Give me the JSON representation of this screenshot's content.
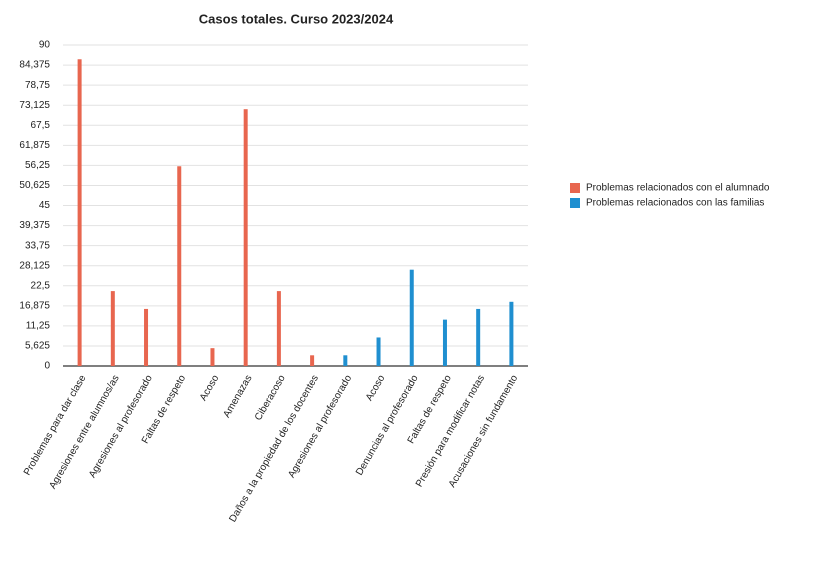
{
  "chart_data": {
    "type": "bar",
    "title": "Casos totales. Curso 2023/2024",
    "categories": [
      "Problemas para dar clase",
      "Agresiones entre alumnos/as",
      "Agresiones al profesorado",
      "Faltas de respeto",
      "Acoso",
      "Amenazas",
      "Ciberacoso",
      "Daños a la propiedad de los docentes",
      "Agresiones al profesorado",
      "Acoso",
      "Denuncias al profesorado",
      "Faltas de respeto",
      "Presión para modificar notas",
      "Acusaciones sin fundamento"
    ],
    "series": [
      {
        "name": "Problemas relacionados con el alumnado",
        "color": "#e8664f",
        "values": [
          86,
          21,
          16,
          56,
          5,
          72,
          21,
          3,
          null,
          null,
          null,
          null,
          null,
          null
        ]
      },
      {
        "name": "Problemas relacionados con las familias",
        "color": "#1f8fd0",
        "values": [
          null,
          null,
          null,
          null,
          null,
          null,
          null,
          null,
          3,
          8,
          27,
          13,
          16,
          18
        ]
      }
    ],
    "ylim": [
      0,
      90
    ],
    "yticks": [
      0,
      {
        "value": 5.625,
        "label": "5,625"
      },
      {
        "value": 11.25,
        "label": "11,25"
      },
      {
        "value": 16.875,
        "label": "16,875"
      },
      {
        "value": 22.5,
        "label": "22,5"
      },
      {
        "value": 28.125,
        "label": "28,125"
      },
      {
        "value": 33.75,
        "label": "33,75"
      },
      {
        "value": 39.375,
        "label": "39,375"
      },
      45,
      {
        "value": 50.625,
        "label": "50,625"
      },
      {
        "value": 56.25,
        "label": "56,25"
      },
      {
        "value": 61.875,
        "label": "61,875"
      },
      {
        "value": 67.5,
        "label": "67,5"
      },
      {
        "value": 73.125,
        "label": "73,125"
      },
      {
        "value": 78.75,
        "label": "78,75"
      },
      {
        "value": 84.375,
        "label": "84,375"
      },
      90
    ],
    "grid": true,
    "legend": "right"
  }
}
